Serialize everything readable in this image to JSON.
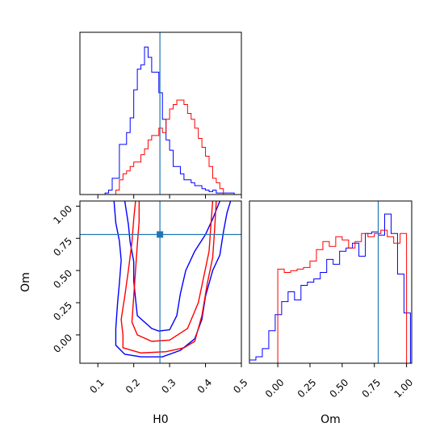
{
  "chart_data": {
    "type": "corner",
    "parameters": [
      "H0",
      "Om"
    ],
    "truth": {
      "H0": 0.273,
      "Om": 0.78
    },
    "colors": {
      "series_a": "#ff0000",
      "series_b": "#0000ff",
      "truth": "#1f77b4"
    },
    "panels": [
      {
        "id": "hist-h0",
        "type": "histogram",
        "xlim": [
          0.05,
          0.5
        ],
        "ylim": [
          0,
          1.1
        ],
        "x_ticks": [
          0.1,
          0.2,
          0.3,
          0.4,
          0.5
        ],
        "bin_width": 0.01,
        "series": [
          {
            "color": "#0000ff",
            "edges_start": 0.1,
            "counts": [
              0,
              0,
              0.01,
              0.03,
              0.11,
              0.11,
              0.34,
              0.34,
              0.42,
              0.52,
              0.71,
              0.85,
              0.88,
              1.0,
              0.93,
              0.83,
              0.83,
              0.69,
              0.51,
              0.37,
              0.3,
              0.19,
              0.19,
              0.14,
              0.1,
              0.1,
              0.08,
              0.06,
              0.06,
              0.04,
              0.03,
              0.02,
              0.03,
              0.01,
              0.01,
              0.01,
              0.01,
              0.01,
              0
            ]
          },
          {
            "color": "#ff0000",
            "edges_start": 0.14,
            "counts": [
              0,
              0.03,
              0.1,
              0.14,
              0.16,
              0.19,
              0.22,
              0.22,
              0.27,
              0.31,
              0.37,
              0.4,
              0.4,
              0.45,
              0.42,
              0.51,
              0.58,
              0.61,
              0.64,
              0.64,
              0.61,
              0.55,
              0.51,
              0.45,
              0.38,
              0.32,
              0.26,
              0.19,
              0.11,
              0.08,
              0.04,
              0
            ]
          }
        ]
      },
      {
        "id": "contour-h0-om",
        "type": "contour",
        "xlim": [
          0.05,
          0.5
        ],
        "ylim": [
          -0.22,
          1.04
        ],
        "x_ticks": [
          0.1,
          0.2,
          0.3,
          0.4,
          0.5
        ],
        "y_ticks": [
          0.0,
          0.25,
          0.5,
          0.75,
          1.0
        ],
        "x_tick_labels": [
          "0.1",
          "0.2",
          "0.3",
          "0.4",
          "0.5"
        ],
        "y_tick_labels": [
          "0.00",
          "0.25",
          "0.50",
          "0.75",
          "1.00"
        ],
        "xlabel": "H0",
        "ylabel": "Om",
        "contours": [
          {
            "color": "#0000ff",
            "level": "outer",
            "points": [
              [
                0.145,
                1.04
              ],
              [
                0.15,
                0.87
              ],
              [
                0.16,
                0.73
              ],
              [
                0.165,
                0.58
              ],
              [
                0.16,
                0.4
              ],
              [
                0.155,
                0.25
              ],
              [
                0.15,
                0.05
              ],
              [
                0.15,
                -0.08
              ],
              [
                0.175,
                -0.15
              ],
              [
                0.22,
                -0.17
              ],
              [
                0.28,
                -0.17
              ],
              [
                0.33,
                -0.12
              ],
              [
                0.37,
                -0.03
              ],
              [
                0.39,
                0.12
              ],
              [
                0.4,
                0.3
              ],
              [
                0.42,
                0.5
              ],
              [
                0.44,
                0.62
              ],
              [
                0.45,
                0.8
              ],
              [
                0.46,
                0.95
              ],
              [
                0.47,
                1.04
              ]
            ]
          },
          {
            "color": "#0000ff",
            "level": "inner",
            "points": [
              [
                0.175,
                1.04
              ],
              [
                0.185,
                0.86
              ],
              [
                0.19,
                0.72
              ],
              [
                0.2,
                0.57
              ],
              [
                0.2,
                0.42
              ],
              [
                0.205,
                0.28
              ],
              [
                0.21,
                0.15
              ],
              [
                0.25,
                0.05
              ],
              [
                0.27,
                0.03
              ],
              [
                0.3,
                0.04
              ],
              [
                0.32,
                0.15
              ],
              [
                0.33,
                0.32
              ],
              [
                0.345,
                0.5
              ],
              [
                0.37,
                0.65
              ],
              [
                0.4,
                0.78
              ],
              [
                0.42,
                0.9
              ],
              [
                0.44,
                1.04
              ]
            ]
          },
          {
            "color": "#ff0000",
            "level": "outer",
            "points": [
              [
                0.205,
                1.04
              ],
              [
                0.2,
                0.9
              ],
              [
                0.195,
                0.72
              ],
              [
                0.185,
                0.5
              ],
              [
                0.175,
                0.3
              ],
              [
                0.165,
                0.12
              ],
              [
                0.17,
                0.0
              ],
              [
                0.17,
                -0.1
              ],
              [
                0.22,
                -0.14
              ],
              [
                0.29,
                -0.13
              ],
              [
                0.34,
                -0.1
              ],
              [
                0.37,
                -0.05
              ],
              [
                0.39,
                0.15
              ],
              [
                0.405,
                0.4
              ],
              [
                0.42,
                0.6
              ],
              [
                0.425,
                0.8
              ],
              [
                0.43,
                1.04
              ]
            ]
          },
          {
            "color": "#ff0000",
            "level": "inner",
            "points": [
              [
                0.215,
                1.04
              ],
              [
                0.215,
                0.88
              ],
              [
                0.21,
                0.7
              ],
              [
                0.205,
                0.5
              ],
              [
                0.2,
                0.3
              ],
              [
                0.195,
                0.1
              ],
              [
                0.21,
                0.0
              ],
              [
                0.25,
                -0.05
              ],
              [
                0.3,
                -0.04
              ],
              [
                0.35,
                0.05
              ],
              [
                0.38,
                0.25
              ],
              [
                0.395,
                0.45
              ],
              [
                0.41,
                0.65
              ],
              [
                0.415,
                0.85
              ],
              [
                0.42,
                1.04
              ]
            ]
          }
        ]
      },
      {
        "id": "hist-om",
        "type": "histogram",
        "xlim": [
          -0.22,
          1.04
        ],
        "ylim": [
          0,
          1.0
        ],
        "x_ticks": [
          0.0,
          0.25,
          0.5,
          0.75,
          1.0
        ],
        "x_tick_labels": [
          "0.00",
          "0.25",
          "0.50",
          "0.75",
          "1.00"
        ],
        "xlabel": "Om",
        "bin_width": 0.05,
        "series": [
          {
            "color": "#0000ff",
            "edges_start": -0.22,
            "counts": [
              0.02,
              0.04,
              0.09,
              0.2,
              0.3,
              0.38,
              0.44,
              0.39,
              0.48,
              0.5,
              0.52,
              0.56,
              0.64,
              0.61,
              0.69,
              0.71,
              0.74,
              0.66,
              0.8,
              0.81,
              0.79,
              0.92,
              0.8,
              0.55,
              0.31
            ]
          },
          {
            "color": "#ff0000",
            "edges_start": 0.0,
            "counts": [
              0.58,
              0.56,
              0.57,
              0.58,
              0.59,
              0.63,
              0.7,
              0.75,
              0.72,
              0.78,
              0.76,
              0.71,
              0.75,
              0.8,
              0.78,
              0.8,
              0.82,
              0.78,
              0.74,
              0.8
            ]
          }
        ]
      }
    ]
  }
}
